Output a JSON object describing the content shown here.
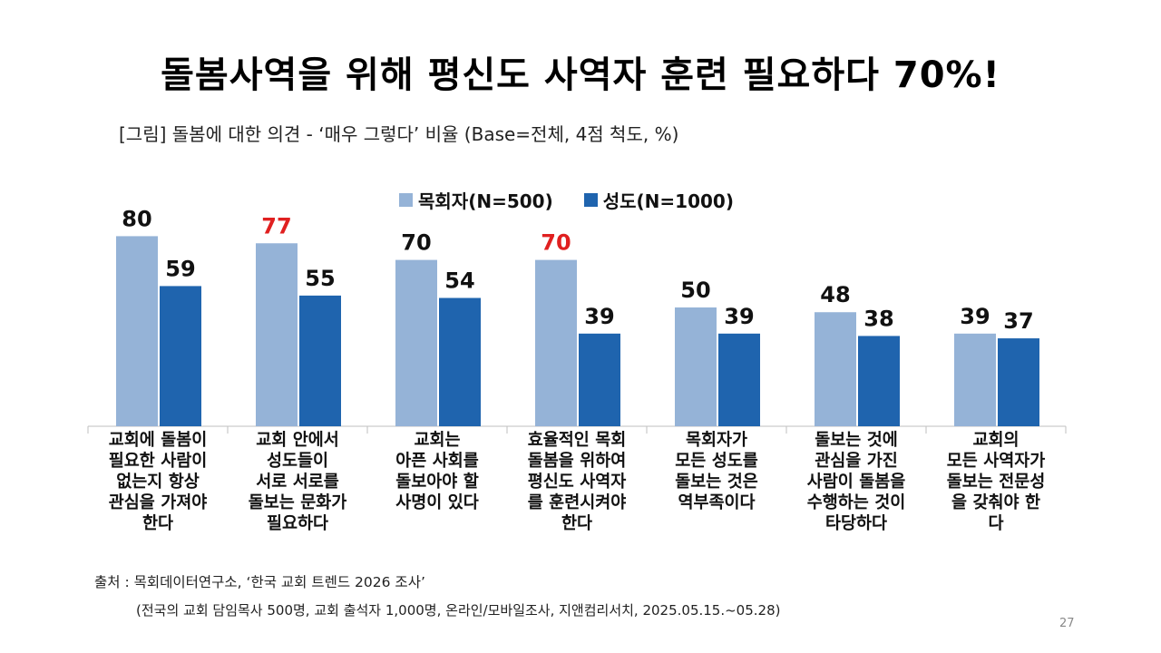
{
  "title": "돌봄사역을 위해 평신도 사역자 훈련 필요하다 70%!",
  "subtitle": "[그림] 돌봄에 대한 의견 - ‘매우 그렇다’ 비율 (Base=전체, 4점 척도, %)",
  "colors": {
    "pastor": "#95B3D7",
    "member": "#1F64AE",
    "highlight": "#E02020",
    "text": "#111111"
  },
  "chart_data": {
    "type": "bar",
    "title": "돌봄에 대한 의견 - ‘매우 그렇다’ 비율",
    "categories": [
      [
        "교회에 돌봄이",
        "필요한 사람이",
        "없는지 항상",
        "관심을 가져야",
        "한다"
      ],
      [
        "교회 안에서",
        "성도들이",
        "서로 서로를",
        "돌보는 문화가",
        "필요하다"
      ],
      [
        "교회는",
        "아픈 사회를",
        "돌보아야 할",
        "사명이 있다"
      ],
      [
        "효율적인 목회",
        "돌봄을 위하여",
        "평신도 사역자",
        "를 훈련시켜야",
        "한다"
      ],
      [
        "목회자가",
        "모든 성도를",
        "돌보는 것은",
        "역부족이다"
      ],
      [
        "돌보는 것에",
        "관심을 가진",
        "사람이 돌봄을",
        "수행하는 것이",
        "타당하다"
      ],
      [
        "교회의",
        "모든 사역자가",
        "돌보는 전문성",
        "을 갖춰야 한",
        "다"
      ]
    ],
    "series": [
      {
        "name": "목회자(N=500)",
        "values": [
          80,
          77,
          70,
          70,
          50,
          48,
          39
        ],
        "highlight": [
          false,
          true,
          false,
          true,
          false,
          false,
          false
        ]
      },
      {
        "name": "성도(N=1000)",
        "values": [
          59,
          55,
          54,
          39,
          39,
          38,
          37
        ],
        "highlight": [
          false,
          false,
          false,
          false,
          false,
          false,
          false
        ]
      }
    ],
    "xlabel": "",
    "ylabel": "%",
    "ylim": [
      0,
      100
    ],
    "legend_position": "top-center",
    "grid": false
  },
  "source": "출처 : 목회데이터연구소, ‘한국 교회 트렌드 2026 조사’",
  "source_detail": "(전국의 교회 담임목사 500명, 교회 출석자 1,000명, 온라인/모바일조사, 지앤컴리서치, 2025.05.15.~05.28)",
  "page_number": "27"
}
